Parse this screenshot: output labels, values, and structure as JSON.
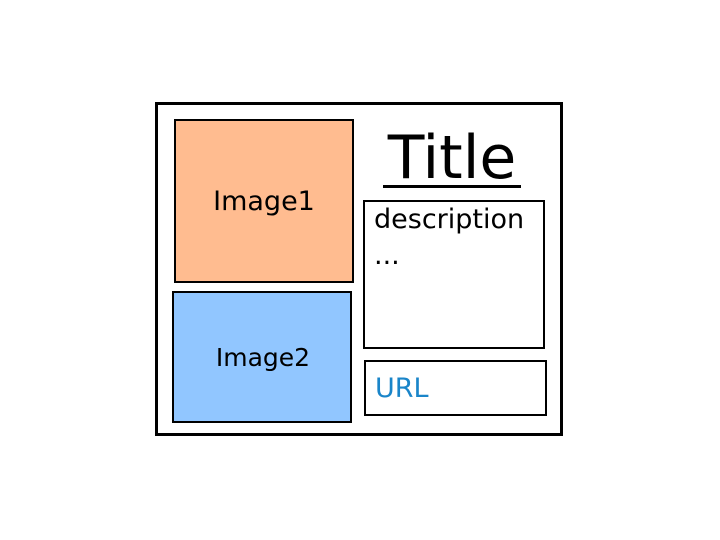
{
  "card": {
    "title": "Title",
    "image1": {
      "label": "Image1",
      "fill": "#ffbc90"
    },
    "image2": {
      "label": "Image2",
      "fill": "#91c6ff"
    },
    "description": "description\n...",
    "url": {
      "label": "URL",
      "color": "#1a85c9"
    }
  }
}
